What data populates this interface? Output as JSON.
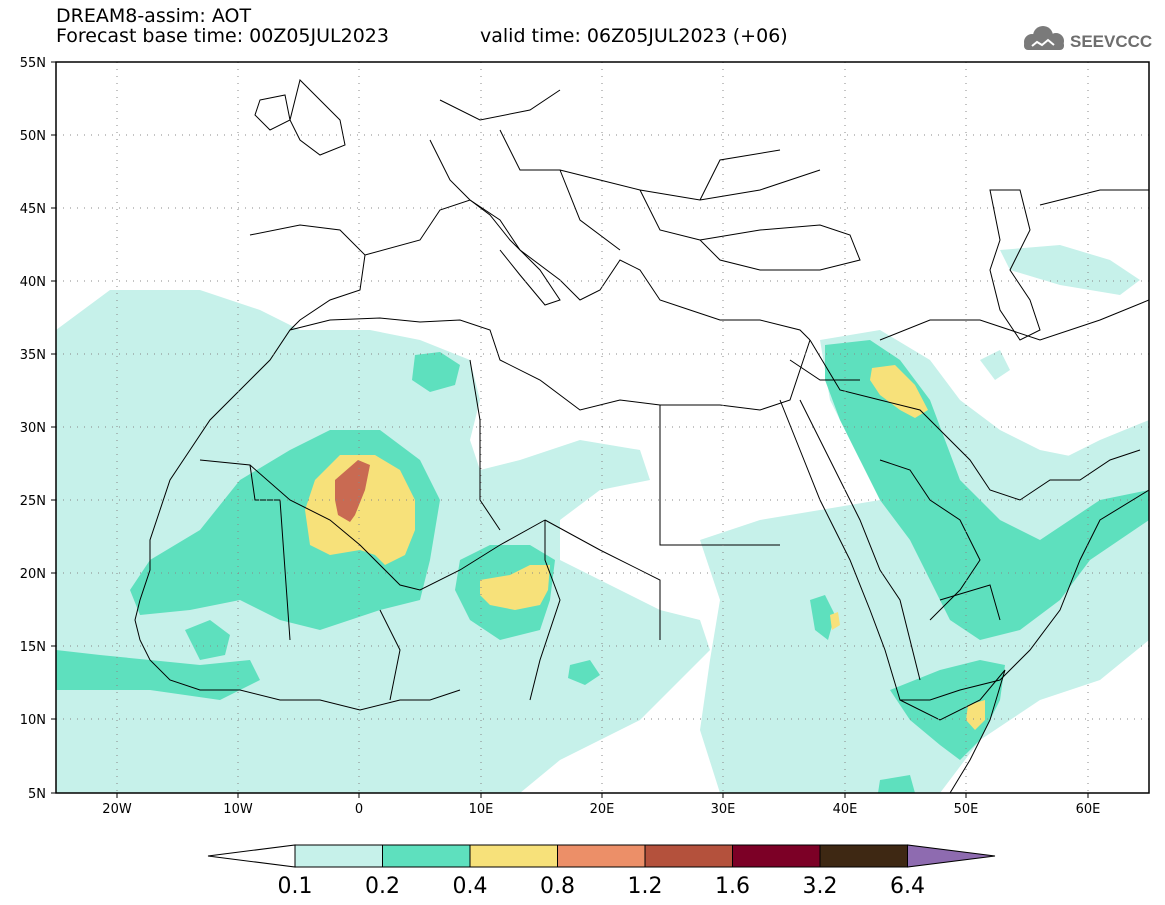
{
  "header": {
    "title": "DREAM8-assim: AOT",
    "forecast_base": "Forecast base time: 00Z05JUL2023",
    "valid_time": "valid time: 06Z05JUL2023 (+06)"
  },
  "logo": {
    "text": "SEEVCCC",
    "icon": "cloud-icon"
  },
  "map": {
    "lon_range": [
      -25,
      65
    ],
    "lat_range": [
      5,
      55
    ],
    "lat_ticks": [
      "55N",
      "50N",
      "45N",
      "40N",
      "35N",
      "30N",
      "25N",
      "20N",
      "15N",
      "10N",
      "5N"
    ],
    "lon_ticks": [
      "20W",
      "10W",
      "0",
      "10E",
      "20E",
      "30E",
      "40E",
      "50E",
      "60E"
    ]
  },
  "legend": {
    "labels": [
      "0.1",
      "0.2",
      "0.4",
      "0.8",
      "1.2",
      "1.6",
      "3.2",
      "6.4"
    ],
    "colors": [
      "#c6f1ea",
      "#5ee0be",
      "#f7e17a",
      "#ec8f68",
      "#b4513c",
      "#7c0026",
      "#3e2813",
      "#8e6bb0"
    ]
  }
}
